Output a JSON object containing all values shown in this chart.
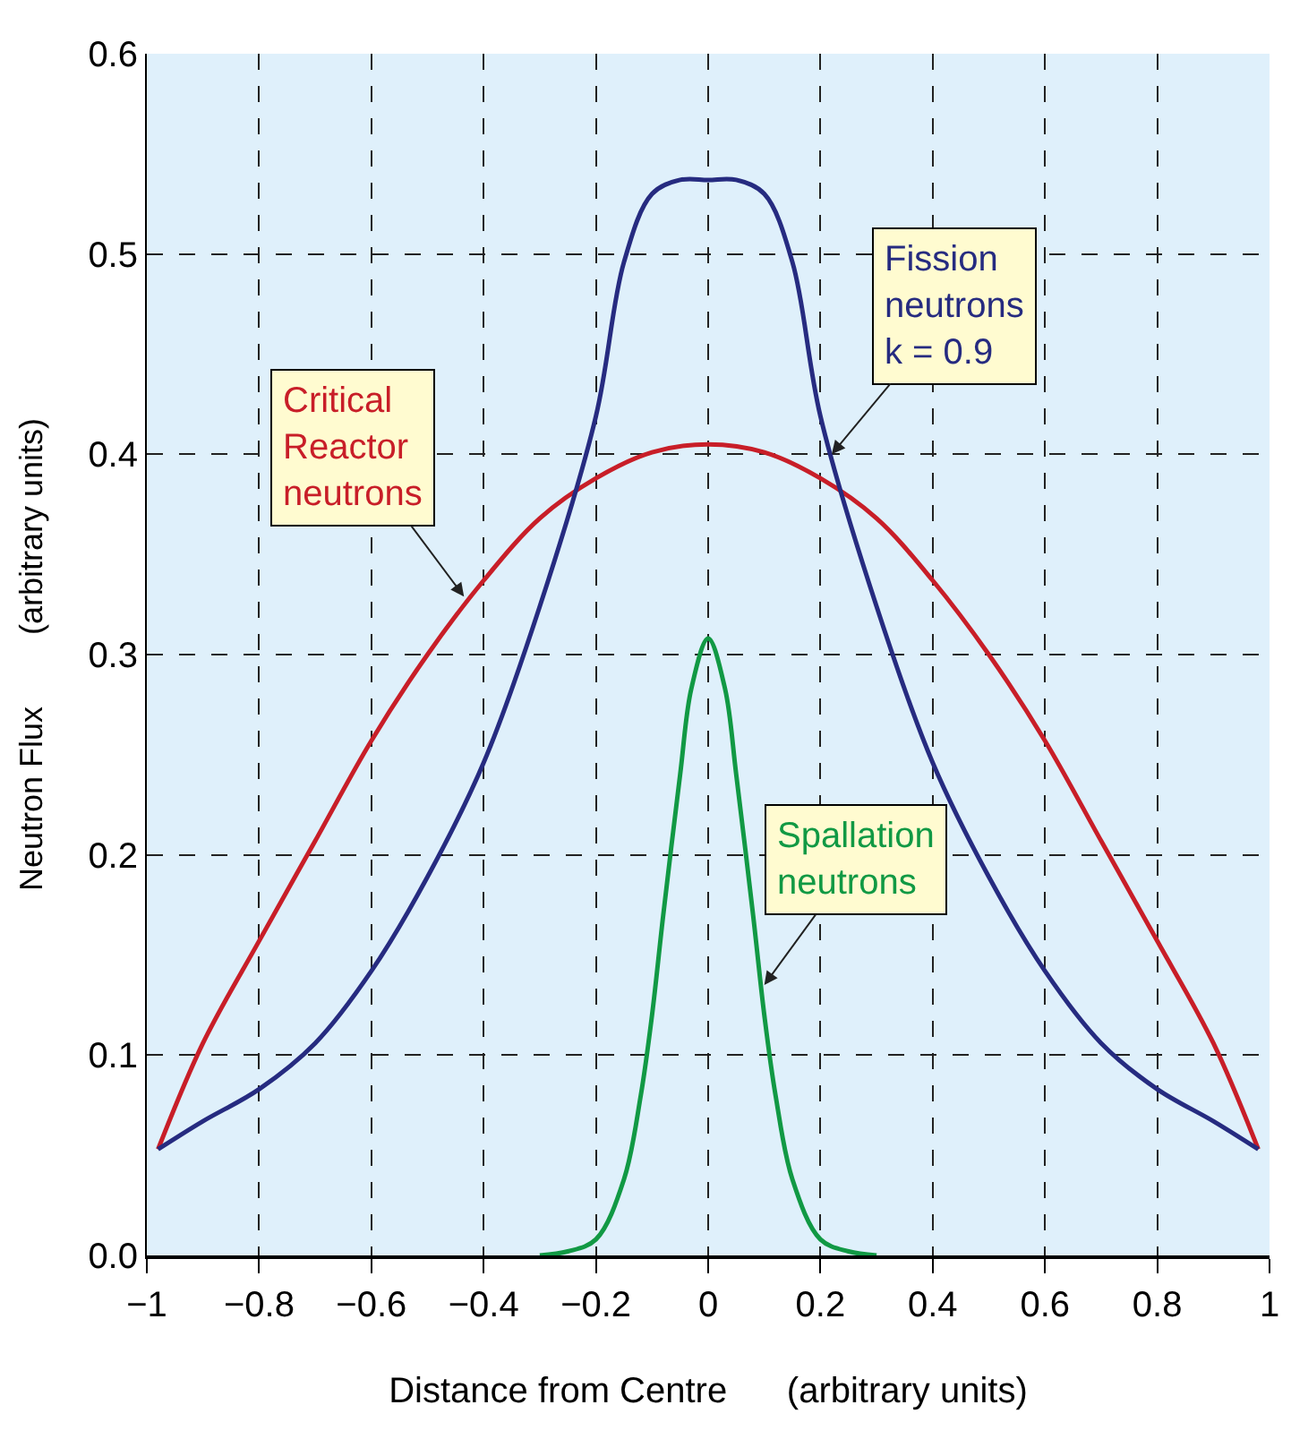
{
  "chart_data": {
    "type": "line",
    "xlabel": "Distance from Centre      (arbitrary units)",
    "ylabel": "Neutron Flux        (arbitrary units)",
    "series": [
      {
        "color": "#c81e28",
        "x": [
          -0.98,
          -0.9,
          -0.8,
          -0.7,
          -0.6,
          -0.5,
          -0.4,
          -0.3,
          -0.2,
          -0.1,
          0,
          0.1,
          0.2,
          0.3,
          0.4,
          0.5,
          0.6,
          0.7,
          0.8,
          0.9,
          0.98
        ],
        "values": [
          0.053,
          0.106,
          0.157,
          0.207,
          0.257,
          0.3,
          0.337,
          0.368,
          0.388,
          0.401,
          0.405,
          0.401,
          0.388,
          0.368,
          0.337,
          0.3,
          0.257,
          0.207,
          0.157,
          0.106,
          0.053
        ]
      },
      {
        "color": "#262b80",
        "x": [
          -0.98,
          -0.9,
          -0.8,
          -0.7,
          -0.6,
          -0.5,
          -0.4,
          -0.3,
          -0.2,
          -0.15,
          -0.1,
          -0.05,
          0,
          0.05,
          0.1,
          0.15,
          0.2,
          0.3,
          0.4,
          0.5,
          0.6,
          0.7,
          0.8,
          0.9,
          0.98
        ],
        "values": [
          0.053,
          0.067,
          0.083,
          0.106,
          0.142,
          0.189,
          0.246,
          0.324,
          0.419,
          0.496,
          0.53,
          0.537,
          0.537,
          0.537,
          0.53,
          0.496,
          0.419,
          0.324,
          0.246,
          0.189,
          0.142,
          0.106,
          0.083,
          0.067,
          0.053
        ]
      },
      {
        "color": "#119944",
        "x": [
          -0.3,
          -0.25,
          -0.2,
          -0.15,
          -0.12,
          -0.1,
          -0.08,
          -0.05,
          -0.03,
          0,
          0.03,
          0.05,
          0.08,
          0.1,
          0.12,
          0.15,
          0.2,
          0.25,
          0.3
        ],
        "values": [
          0.0,
          0.002,
          0.008,
          0.038,
          0.08,
          0.12,
          0.17,
          0.24,
          0.283,
          0.308,
          0.283,
          0.24,
          0.17,
          0.12,
          0.08,
          0.038,
          0.008,
          0.002,
          0.0
        ]
      }
    ],
    "annotations": [
      {
        "text": "Critical\nReactor\nneutrons",
        "x": -0.435,
        "y": 0.329
      },
      {
        "text": "Fission\nneutrons\nk = 0.9",
        "x": 0.22,
        "y": 0.4
      },
      {
        "text": "Spallation\nneutrons",
        "x": 0.1,
        "y": 0.135
      }
    ],
    "xlim": [
      -1,
      1
    ],
    "xticks": [
      {
        "value": -1,
        "label": "−1"
      },
      {
        "value": -0.8,
        "label": "−0.8"
      },
      {
        "value": -0.6,
        "label": "−0.6"
      },
      {
        "value": -0.4,
        "label": "−0.4"
      },
      {
        "value": -0.2,
        "label": "−0.2"
      },
      0,
      0.2,
      0.4,
      0.6,
      0.8,
      1
    ],
    "ylim": [
      0,
      0.6
    ],
    "yticks": [
      {
        "value": 0,
        "label": "0.0"
      },
      0.1,
      0.2,
      0.3,
      0.4,
      0.5,
      0.6
    ],
    "grid": true
  }
}
